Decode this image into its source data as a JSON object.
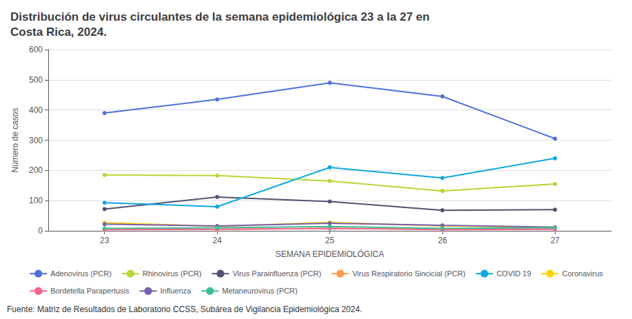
{
  "chart_data": {
    "type": "line",
    "title": "Distribución de virus circulantes de la semana epidemiológica 23 a la 27 en\nCosta Rica, 2024.",
    "x_label": "SEMANA EPIDEMIOLÓGICA",
    "y_label": "Número de casos",
    "annotations": [
      "Fuente: Matriz de Resultados de Laboratorio CCSS, Subárea de Vigilancia Epidemiológica 2024."
    ],
    "x": [
      23,
      24,
      25,
      26,
      27
    ],
    "series": [
      {
        "name": "Adenovirus (PCR)",
        "values": [
          390,
          435,
          490,
          445,
          305
        ]
      },
      {
        "name": "Rhinovirus (PCR)",
        "values": [
          185,
          183,
          165,
          132,
          155
        ]
      },
      {
        "name": "Virus Parainfluenza (PCR)",
        "values": [
          72,
          112,
          97,
          68,
          70
        ]
      },
      {
        "name": "Virus Respiratorio Sincicial (PCR)",
        "values": [
          5,
          5,
          8,
          6,
          6
        ]
      },
      {
        "name": "COVID 19",
        "values": [
          93,
          80,
          210,
          175,
          240
        ]
      },
      {
        "name": "Coronavirus",
        "values": [
          27,
          15,
          28,
          16,
          12
        ]
      },
      {
        "name": "Bordetella Parapertusis",
        "values": [
          4,
          5,
          8,
          4,
          5
        ]
      },
      {
        "name": "Influenza",
        "values": [
          22,
          16,
          25,
          18,
          12
        ]
      },
      {
        "name": "Metaneurovirus (PCR)",
        "values": [
          8,
          10,
          14,
          8,
          10
        ]
      }
    ],
    "marker": "circle",
    "xlim": [
      22.5,
      27.5
    ],
    "xticks": [
      23,
      24,
      25,
      26,
      27
    ],
    "ylim": [
      0,
      600
    ],
    "yticks": [
      0,
      100,
      200,
      300,
      400,
      500,
      600
    ],
    "grid": "y",
    "legend": "bottom"
  }
}
